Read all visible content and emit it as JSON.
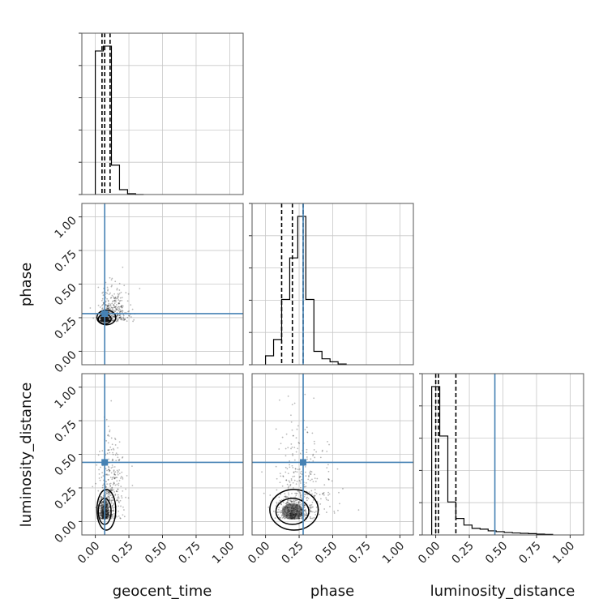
{
  "chart_data": {
    "type": "corner",
    "parameters": [
      "geocent_time",
      "phase",
      "luminosity_distance"
    ],
    "axis_range": [
      -0.1,
      1.1
    ],
    "ticks": [
      0.0,
      0.25,
      0.5,
      0.75,
      1.0
    ],
    "tick_labels": [
      "0.00",
      "0.25",
      "0.50",
      "0.75",
      "1.00"
    ],
    "grid": true,
    "truth_color": "#4682b4",
    "truths": {
      "geocent_time": 0.07,
      "phase": 0.28,
      "luminosity_distance": 0.44
    },
    "histograms": [
      {
        "param": "geocent_time",
        "bin_edges": [
          0.0,
          0.06,
          0.12,
          0.18,
          0.24,
          0.3,
          0.36
        ],
        "counts": [
          0.88,
          0.91,
          0.18,
          0.03,
          0.005,
          0.0
        ],
        "quantiles": [
          0.05,
          0.07,
          0.11
        ]
      },
      {
        "param": "phase",
        "bin_edges": [
          0.0,
          0.06,
          0.12,
          0.18,
          0.24,
          0.3,
          0.36,
          0.42,
          0.48,
          0.54,
          0.6
        ],
        "counts": [
          0.06,
          0.17,
          0.44,
          0.72,
          1.0,
          0.44,
          0.09,
          0.04,
          0.02,
          0.005
        ],
        "quantiles": [
          0.12,
          0.2,
          0.28
        ]
      },
      {
        "param": "luminosity_distance",
        "bin_edges": [
          -0.03,
          0.03,
          0.09,
          0.15,
          0.21,
          0.27,
          0.33,
          0.39,
          0.45,
          0.51,
          0.57,
          0.63,
          0.69,
          0.75,
          0.81,
          0.87
        ],
        "counts": [
          0.9,
          0.6,
          0.2,
          0.1,
          0.06,
          0.04,
          0.035,
          0.025,
          0.02,
          0.015,
          0.012,
          0.01,
          0.008,
          0.005,
          0.003
        ],
        "quantiles": [
          0.0,
          0.02,
          0.15
        ]
      }
    ],
    "scatter_2d": [
      {
        "x_param": "geocent_time",
        "y_param": "phase",
        "center": [
          0.07,
          0.22
        ],
        "spread": [
          0.035,
          0.08
        ],
        "tail": [
          0.12,
          -0.1
        ]
      },
      {
        "x_param": "geocent_time",
        "y_param": "luminosity_distance",
        "center": [
          0.07,
          0.02
        ],
        "spread": [
          0.035,
          0.22
        ],
        "tail": [
          0.1,
          0.5
        ]
      },
      {
        "x_param": "phase",
        "y_param": "luminosity_distance",
        "center": [
          0.2,
          0.02
        ],
        "spread": [
          0.09,
          0.22
        ],
        "tail": [
          0.15,
          0.6
        ]
      }
    ]
  }
}
